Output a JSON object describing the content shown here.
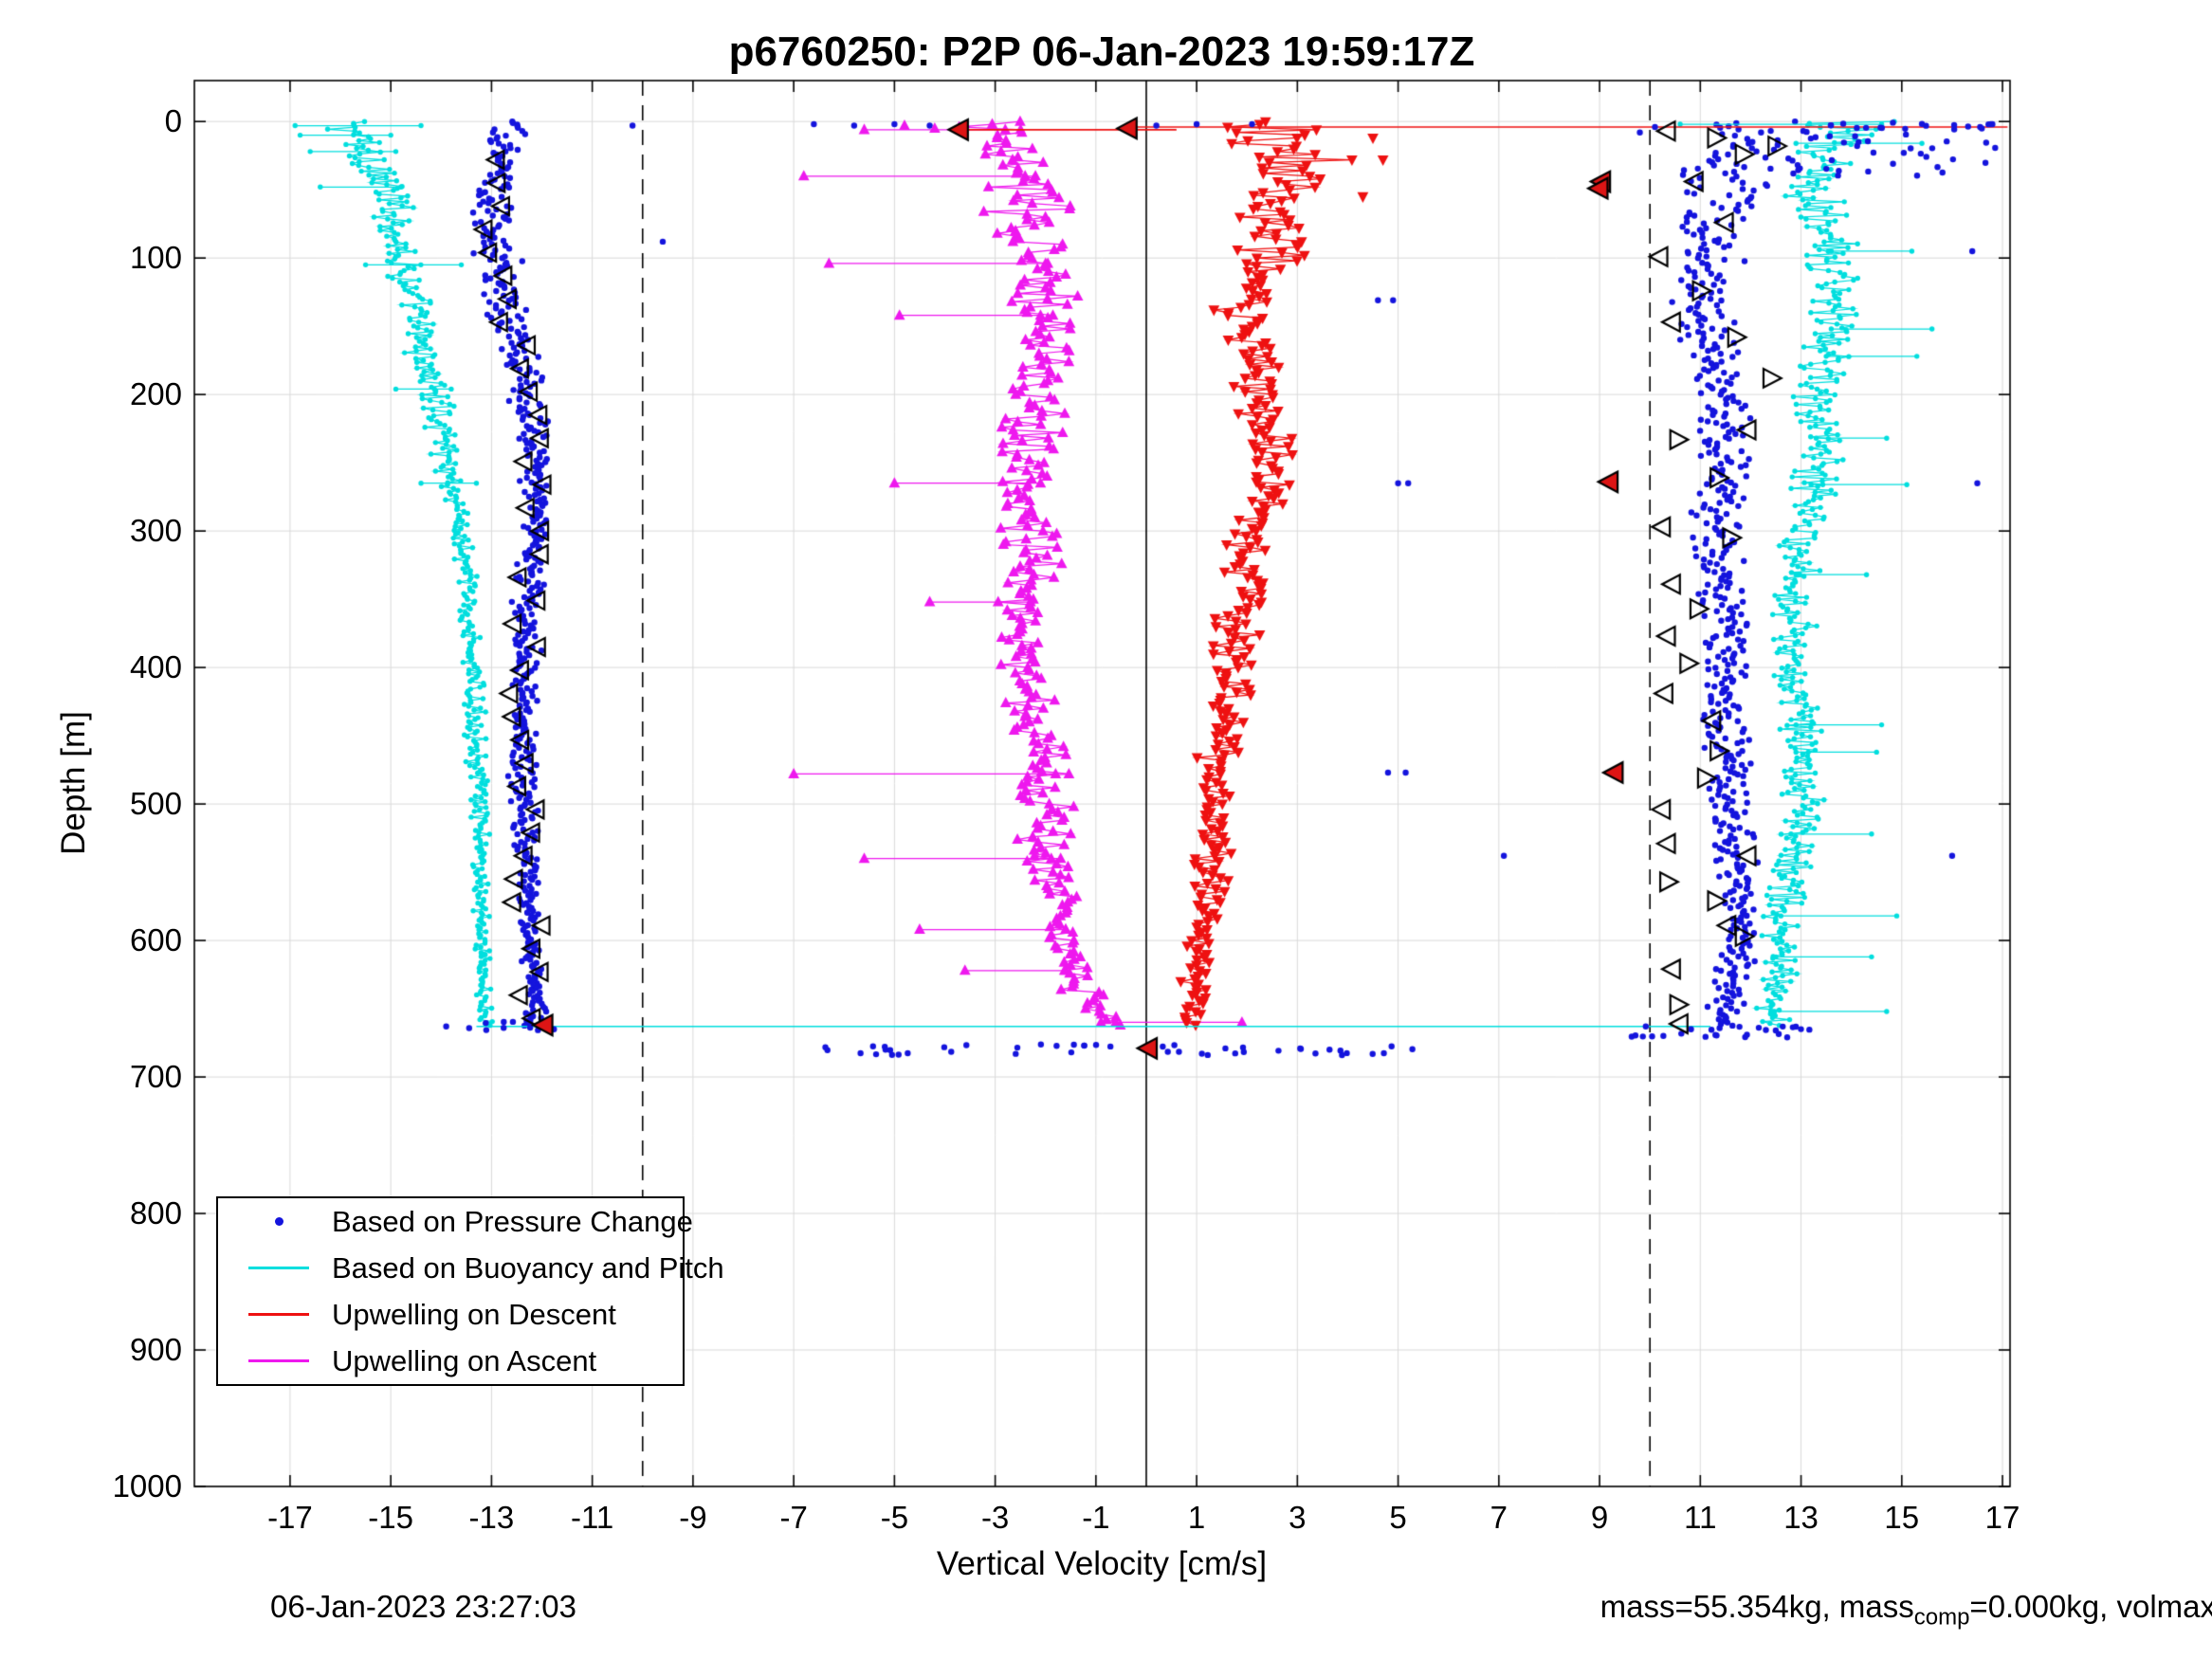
{
  "chart_data": {
    "type": "scatter",
    "title": "p6760250: P2P 06-Jan-2023 19:59:17Z",
    "xlabel": "Vertical Velocity [cm/s]",
    "ylabel": "Depth [m]",
    "xlim": [
      -17,
      17
    ],
    "ylim": [
      0,
      1000
    ],
    "y_inverted": true,
    "grid": true,
    "xticks": [
      -17,
      -15,
      -13,
      -11,
      -9,
      -7,
      -5,
      -3,
      -1,
      1,
      3,
      5,
      7,
      9,
      11,
      13,
      15,
      17
    ],
    "yticks": [
      0,
      100,
      200,
      300,
      400,
      500,
      600,
      700,
      800,
      900,
      1000
    ],
    "ref_lines": {
      "solid_x": [
        0
      ],
      "dashed_x": [
        -10,
        10
      ]
    },
    "colors": {
      "blue": "#1414dd",
      "cyan": "#00dede",
      "red": "#ee1111",
      "magenta": "#ee18ee",
      "red_fill": "#dd1515",
      "black": "#000000",
      "grid": "#d9d9d9"
    },
    "legend": {
      "position": "bottom-left",
      "items": [
        {
          "label": "Based on Pressure Change",
          "color_key": "blue",
          "marker": "dot"
        },
        {
          "label": "Based on Buoyancy and Pitch",
          "color_key": "cyan",
          "marker": "line"
        },
        {
          "label": "Upwelling on Descent",
          "color_key": "red",
          "marker": "line"
        },
        {
          "label": "Upwelling on Ascent",
          "color_key": "magenta",
          "marker": "line"
        }
      ]
    },
    "series": [
      {
        "name": "buoyancy-descent",
        "color_key": "cyan",
        "marker": "dot",
        "msize": 2.7,
        "line": true,
        "step": 1.4,
        "max_depth": 663,
        "profile": [
          [
            0,
            -15.9,
            0.5
          ],
          [
            15,
            -15.6,
            0.5
          ],
          [
            40,
            -15.2,
            0.45
          ],
          [
            70,
            -14.9,
            0.4
          ],
          [
            110,
            -14.7,
            0.35
          ],
          [
            150,
            -14.5,
            0.35
          ],
          [
            190,
            -14.2,
            0.3
          ],
          [
            230,
            -13.95,
            0.3
          ],
          [
            280,
            -13.7,
            0.25
          ],
          [
            340,
            -13.5,
            0.22
          ],
          [
            420,
            -13.35,
            0.2
          ],
          [
            500,
            -13.25,
            0.18
          ],
          [
            580,
            -13.2,
            0.15
          ],
          [
            640,
            -13.15,
            0.15
          ],
          [
            663,
            -13.1,
            0.12
          ]
        ],
        "spikes": [
          [
            3,
            -16.9,
            -14.4
          ],
          [
            10,
            -16.8,
            -15.0
          ],
          [
            22,
            -16.6,
            -14.9
          ],
          [
            48,
            -16.4,
            -14.8
          ],
          [
            105,
            -15.5,
            -13.6
          ],
          [
            196,
            -14.9,
            -13.8
          ],
          [
            265,
            -14.4,
            -13.3
          ]
        ]
      },
      {
        "name": "pressure-descent",
        "color_key": "blue",
        "marker": "dot",
        "msize": 3.2,
        "line": false,
        "step": 1.15,
        "max_depth": 663,
        "profile": [
          [
            0,
            -12.6,
            0.45
          ],
          [
            25,
            -12.85,
            0.4
          ],
          [
            55,
            -13.0,
            0.4
          ],
          [
            90,
            -12.95,
            0.4
          ],
          [
            130,
            -12.7,
            0.4
          ],
          [
            170,
            -12.45,
            0.35
          ],
          [
            210,
            -12.25,
            0.32
          ],
          [
            260,
            -12.1,
            0.3
          ],
          [
            310,
            -12.15,
            0.3
          ],
          [
            360,
            -12.3,
            0.28
          ],
          [
            410,
            -12.35,
            0.26
          ],
          [
            460,
            -12.4,
            0.26
          ],
          [
            510,
            -12.35,
            0.24
          ],
          [
            560,
            -12.3,
            0.22
          ],
          [
            610,
            -12.2,
            0.2
          ],
          [
            663,
            -12.1,
            0.2
          ]
        ]
      },
      {
        "name": "upwelling-ascent",
        "color_key": "magenta",
        "marker": "tri-up",
        "msize": 6.5,
        "line": true,
        "step": 2.0,
        "max_depth": 663,
        "profile": [
          [
            0,
            -3.0,
            0.9
          ],
          [
            30,
            -2.5,
            0.8
          ],
          [
            70,
            -2.3,
            0.75
          ],
          [
            120,
            -2.1,
            0.7
          ],
          [
            170,
            -2.0,
            0.65
          ],
          [
            220,
            -2.3,
            0.6
          ],
          [
            270,
            -2.4,
            0.55
          ],
          [
            320,
            -2.3,
            0.55
          ],
          [
            370,
            -2.45,
            0.5
          ],
          [
            420,
            -2.3,
            0.5
          ],
          [
            470,
            -2.1,
            0.5
          ],
          [
            520,
            -2.0,
            0.5
          ],
          [
            570,
            -1.85,
            0.45
          ],
          [
            620,
            -1.6,
            0.4
          ],
          [
            650,
            -1.1,
            0.35
          ],
          [
            663,
            -0.5,
            0.25
          ]
        ],
        "spikes": [
          [
            6,
            -5.6,
            -2.8
          ],
          [
            40,
            -6.8,
            -2.2
          ],
          [
            104,
            -6.3,
            -2.0
          ],
          [
            142,
            -4.9,
            -2.1
          ],
          [
            265,
            -5.0,
            -2.1
          ],
          [
            352,
            -4.3,
            -2.3
          ],
          [
            478,
            -7.0,
            -1.8
          ],
          [
            540,
            -5.6,
            -1.7
          ],
          [
            592,
            -4.5,
            -1.6
          ],
          [
            622,
            -3.6,
            -1.6
          ],
          [
            660,
            -0.9,
            1.9
          ]
        ]
      },
      {
        "name": "upwelling-descent",
        "color_key": "red",
        "marker": "tri-down",
        "msize": 6.5,
        "line": true,
        "step": 2.0,
        "max_depth": 663,
        "profile": [
          [
            0,
            2.6,
            1.3
          ],
          [
            30,
            2.9,
            1.0
          ],
          [
            60,
            2.7,
            0.85
          ],
          [
            100,
            2.4,
            0.75
          ],
          [
            140,
            2.0,
            0.65
          ],
          [
            180,
            2.1,
            0.6
          ],
          [
            230,
            2.4,
            0.55
          ],
          [
            280,
            2.3,
            0.5
          ],
          [
            330,
            2.0,
            0.5
          ],
          [
            380,
            1.7,
            0.45
          ],
          [
            430,
            1.6,
            0.42
          ],
          [
            480,
            1.4,
            0.4
          ],
          [
            530,
            1.35,
            0.38
          ],
          [
            580,
            1.2,
            0.35
          ],
          [
            630,
            1.0,
            0.3
          ],
          [
            663,
            0.85,
            0.25
          ]
        ]
      },
      {
        "name": "pressure-ascent",
        "color_key": "blue",
        "marker": "dot",
        "msize": 3.2,
        "line": false,
        "step": 1.15,
        "max_depth": 663,
        "profile": [
          [
            0,
            12.4,
            1.4
          ],
          [
            25,
            11.7,
            1.0
          ],
          [
            55,
            11.3,
            0.8
          ],
          [
            95,
            11.15,
            0.65
          ],
          [
            140,
            11.0,
            0.6
          ],
          [
            190,
            11.35,
            0.55
          ],
          [
            240,
            11.5,
            0.5
          ],
          [
            290,
            11.3,
            0.48
          ],
          [
            340,
            11.4,
            0.45
          ],
          [
            390,
            11.5,
            0.42
          ],
          [
            440,
            11.5,
            0.42
          ],
          [
            490,
            11.6,
            0.4
          ],
          [
            540,
            11.7,
            0.38
          ],
          [
            590,
            11.8,
            0.36
          ],
          [
            630,
            11.65,
            0.32
          ],
          [
            663,
            11.4,
            0.3
          ]
        ]
      },
      {
        "name": "buoyancy-ascent",
        "color_key": "cyan",
        "marker": "dot",
        "msize": 2.7,
        "line": true,
        "step": 1.4,
        "max_depth": 663,
        "profile": [
          [
            0,
            13.9,
            1.1
          ],
          [
            25,
            13.5,
            0.8
          ],
          [
            60,
            13.3,
            0.7
          ],
          [
            100,
            13.6,
            0.6
          ],
          [
            150,
            13.8,
            0.6
          ],
          [
            200,
            13.25,
            0.5
          ],
          [
            250,
            13.4,
            0.5
          ],
          [
            300,
            13.0,
            0.45
          ],
          [
            350,
            12.85,
            0.42
          ],
          [
            400,
            12.8,
            0.4
          ],
          [
            450,
            13.0,
            0.45
          ],
          [
            500,
            13.1,
            0.45
          ],
          [
            550,
            12.75,
            0.4
          ],
          [
            600,
            12.6,
            0.4
          ],
          [
            640,
            12.5,
            0.35
          ],
          [
            663,
            12.4,
            0.3
          ]
        ],
        "spikes": [
          [
            2,
            10.6,
            14.6
          ],
          [
            16,
            12.9,
            15.4
          ],
          [
            95,
            13.6,
            15.2
          ],
          [
            152,
            13.6,
            15.6
          ],
          [
            172,
            13.5,
            15.3
          ],
          [
            232,
            13.3,
            14.7
          ],
          [
            266,
            13.2,
            15.1
          ],
          [
            332,
            12.9,
            14.3
          ],
          [
            442,
            12.9,
            14.6
          ],
          [
            462,
            12.9,
            14.5
          ],
          [
            522,
            12.8,
            14.4
          ],
          [
            582,
            12.6,
            14.9
          ],
          [
            612,
            12.5,
            14.4
          ],
          [
            652,
            12.4,
            14.7
          ]
        ]
      }
    ],
    "top_lines": [
      {
        "color_key": "red",
        "depth": 4,
        "x1": -0.3,
        "x2": 17.1
      },
      {
        "color_key": "red",
        "depth": 6,
        "x1": -3.7,
        "x2": 0.6
      },
      {
        "color_key": "cyan",
        "depth": 663,
        "x1": -13.3,
        "x2": 11.2
      }
    ],
    "clusters": [
      {
        "color_key": "blue",
        "count": 48,
        "x_range": [
          -6.6,
          5.4
        ],
        "d_range": [
          676,
          684
        ]
      },
      {
        "color_key": "blue",
        "count": 26,
        "x_range": [
          9.6,
          13.2
        ],
        "d_range": [
          663,
          671
        ]
      },
      {
        "color_key": "blue",
        "count": 42,
        "x_range": [
          12.3,
          16.9
        ],
        "d_range": [
          0,
          40
        ]
      },
      {
        "color_key": "blue",
        "count": 14,
        "x_range": [
          13.0,
          16.9
        ],
        "d_range": [
          0,
          6
        ]
      },
      {
        "color_key": "blue",
        "count": 10,
        "x_range": [
          -13.6,
          -11.6
        ],
        "d_range": [
          659,
          666
        ]
      }
    ],
    "isolated_blue": [
      [
        4.6,
        131
      ],
      [
        4.9,
        131
      ],
      [
        5.0,
        265
      ],
      [
        5.2,
        265
      ],
      [
        16.5,
        265
      ],
      [
        4.8,
        477
      ],
      [
        5.15,
        477
      ],
      [
        7.1,
        538
      ],
      [
        16.0,
        538
      ],
      [
        16.4,
        95
      ],
      [
        -9.6,
        88
      ],
      [
        -10.2,
        3
      ],
      [
        -6.6,
        2
      ],
      [
        -5.8,
        3
      ],
      [
        -5.0,
        2
      ],
      [
        -4.3,
        3
      ],
      [
        1.0,
        2
      ],
      [
        0.2,
        3
      ],
      [
        2.1,
        2
      ],
      [
        10.1,
        4
      ],
      [
        9.8,
        8
      ],
      [
        16.8,
        2
      ],
      [
        -13.9,
        663
      ]
    ],
    "isolated_red_tris": [
      [
        4.5,
        12
      ],
      [
        4.7,
        28
      ],
      [
        4.3,
        55
      ]
    ],
    "isolated_magenta_tris": [
      [
        -4.8,
        3
      ],
      [
        -4.2,
        5
      ]
    ],
    "open_triangles_descent": {
      "d_from": 28,
      "d_to": 660,
      "d_step": 17,
      "jitter": 0.3,
      "size": 10.5,
      "follows": "pressure-descent"
    },
    "open_triangles_ascent": [
      [
        10.35,
        7,
        "l"
      ],
      [
        11.3,
        12,
        "r"
      ],
      [
        11.85,
        24,
        "r"
      ],
      [
        12.5,
        18,
        "r"
      ],
      [
        10.9,
        44,
        "l"
      ],
      [
        11.5,
        74,
        "l"
      ],
      [
        10.2,
        99,
        "l"
      ],
      [
        11.0,
        124,
        "r"
      ],
      [
        10.45,
        147,
        "l"
      ],
      [
        11.7,
        158,
        "r"
      ],
      [
        12.4,
        188,
        "r"
      ],
      [
        11.95,
        226,
        "l"
      ],
      [
        10.55,
        233,
        "r"
      ],
      [
        11.35,
        261,
        "r"
      ],
      [
        10.25,
        297,
        "l"
      ],
      [
        11.6,
        305,
        "r"
      ],
      [
        10.45,
        339,
        "l"
      ],
      [
        10.95,
        357,
        "r"
      ],
      [
        10.35,
        377,
        "l"
      ],
      [
        10.75,
        397,
        "r"
      ],
      [
        10.3,
        419,
        "l"
      ],
      [
        11.25,
        439,
        "l"
      ],
      [
        11.35,
        461,
        "r"
      ],
      [
        11.1,
        481,
        "r"
      ],
      [
        10.25,
        504,
        "l"
      ],
      [
        10.35,
        529,
        "l"
      ],
      [
        11.95,
        538,
        "l"
      ],
      [
        10.35,
        557,
        "r"
      ],
      [
        11.3,
        571,
        "r"
      ],
      [
        11.55,
        589,
        "l"
      ],
      [
        11.85,
        597,
        "r"
      ],
      [
        10.45,
        621,
        "l"
      ],
      [
        10.55,
        647,
        "r"
      ],
      [
        10.6,
        661,
        "l"
      ]
    ],
    "red_filled_triangles": [
      [
        -3.7,
        6
      ],
      [
        -0.35,
        5
      ],
      [
        9.05,
        44
      ],
      [
        9.0,
        49
      ],
      [
        9.2,
        264
      ],
      [
        9.3,
        477
      ],
      [
        -11.95,
        662
      ],
      [
        0.05,
        679
      ]
    ],
    "footer_left": "06-Jan-2023 23:27:03",
    "footer_right": {
      "pre": "mass=55.354kg, mass",
      "sub": "comp",
      "post": "=0.000kg, volmax"
    }
  }
}
